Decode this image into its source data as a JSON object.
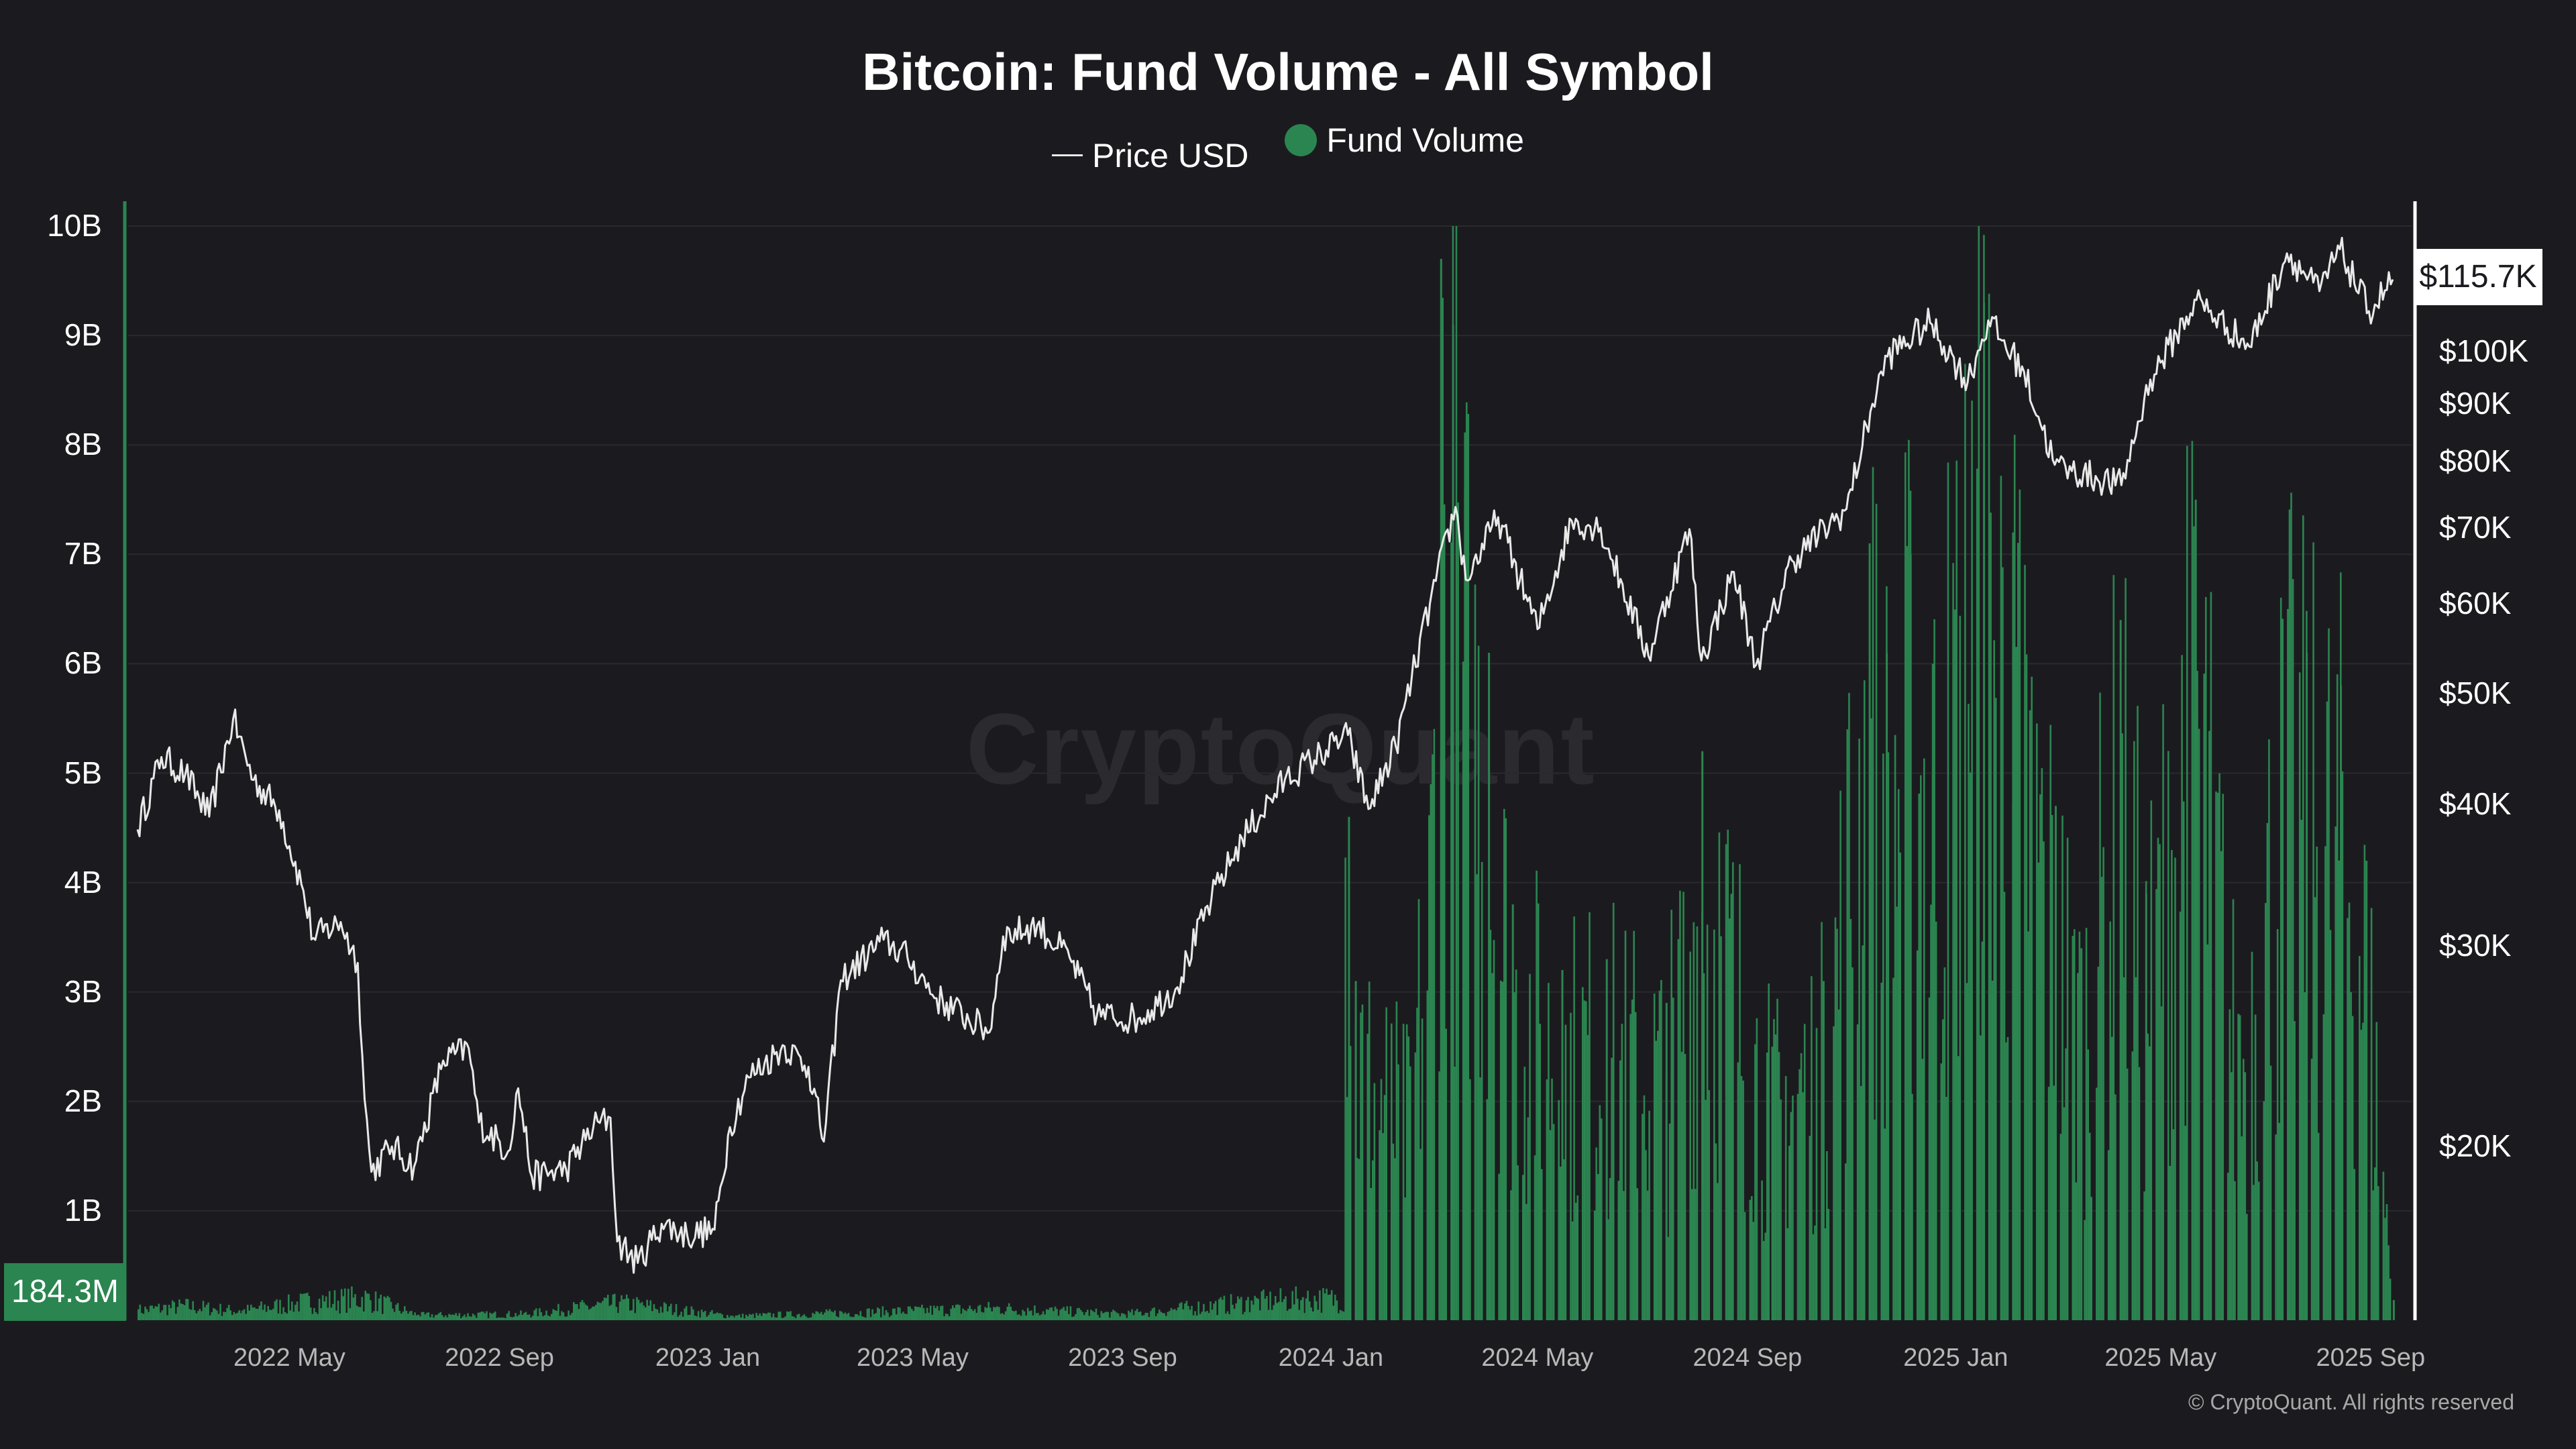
{
  "chart_data": {
    "type": "bar+line",
    "title": "Bitcoin: Fund Volume - All Symbol",
    "legend_position": "top-center",
    "grid": true,
    "series": [
      {
        "name": "Price USD",
        "type": "line",
        "axis": "right",
        "scale": "log",
        "color": "#e9e9e9",
        "points": [
          [
            "2022-02-01",
            38000
          ],
          [
            "2022-02-15",
            44000
          ],
          [
            "2022-03-01",
            42500
          ],
          [
            "2022-03-15",
            39000
          ],
          [
            "2022-03-29",
            47500
          ],
          [
            "2022-04-10",
            42000
          ],
          [
            "2022-04-25",
            39500
          ],
          [
            "2022-05-08",
            34000
          ],
          [
            "2022-05-15",
            30500
          ],
          [
            "2022-05-31",
            31500
          ],
          [
            "2022-06-10",
            29000
          ],
          [
            "2022-06-14",
            22000
          ],
          [
            "2022-06-18",
            19000
          ],
          [
            "2022-06-30",
            20000
          ],
          [
            "2022-07-13",
            19200
          ],
          [
            "2022-07-30",
            23800
          ],
          [
            "2022-08-14",
            24400
          ],
          [
            "2022-08-20",
            21000
          ],
          [
            "2022-09-06",
            19800
          ],
          [
            "2022-09-12",
            22500
          ],
          [
            "2022-09-20",
            18800
          ],
          [
            "2022-10-10",
            19100
          ],
          [
            "2022-10-26",
            20800
          ],
          [
            "2022-11-05",
            21200
          ],
          [
            "2022-11-09",
            16500
          ],
          [
            "2022-11-21",
            15800
          ],
          [
            "2022-12-05",
            17100
          ],
          [
            "2022-12-20",
            16700
          ],
          [
            "2023-01-05",
            16900
          ],
          [
            "2023-01-14",
            20800
          ],
          [
            "2023-01-25",
            23000
          ],
          [
            "2023-02-15",
            24500
          ],
          [
            "2023-03-01",
            23500
          ],
          [
            "2023-03-10",
            20200
          ],
          [
            "2023-03-20",
            28000
          ],
          [
            "2023-04-14",
            30400
          ],
          [
            "2023-04-28",
            29300
          ],
          [
            "2023-05-15",
            27000
          ],
          [
            "2023-06-15",
            25200
          ],
          [
            "2023-06-23",
            30600
          ],
          [
            "2023-07-13",
            31300
          ],
          [
            "2023-08-01",
            29300
          ],
          [
            "2023-08-17",
            26100
          ],
          [
            "2023-09-10",
            25900
          ],
          [
            "2023-10-02",
            27500
          ],
          [
            "2023-10-23",
            33000
          ],
          [
            "2023-11-10",
            37300
          ],
          [
            "2023-12-05",
            42000
          ],
          [
            "2023-12-20",
            43600
          ],
          [
            "2024-01-11",
            46000
          ],
          [
            "2024-01-23",
            39600
          ],
          [
            "2024-02-08",
            45000
          ],
          [
            "2024-02-28",
            60000
          ],
          [
            "2024-03-14",
            73000
          ],
          [
            "2024-03-20",
            63000
          ],
          [
            "2024-04-08",
            71500
          ],
          [
            "2024-05-01",
            57000
          ],
          [
            "2024-05-21",
            71000
          ],
          [
            "2024-06-07",
            70000
          ],
          [
            "2024-07-05",
            54000
          ],
          [
            "2024-07-29",
            69800
          ],
          [
            "2024-08-05",
            53500
          ],
          [
            "2024-08-24",
            64000
          ],
          [
            "2024-09-06",
            53000
          ],
          [
            "2024-09-27",
            65500
          ],
          [
            "2024-10-29",
            72700
          ],
          [
            "2024-11-12",
            88500
          ],
          [
            "2024-11-22",
            99000
          ],
          [
            "2024-12-17",
            106000
          ],
          [
            "2025-01-08",
            94000
          ],
          [
            "2025-01-20",
            106500
          ],
          [
            "2025-02-10",
            96000
          ],
          [
            "2025-02-28",
            79500
          ],
          [
            "2025-03-10",
            78500
          ],
          [
            "2025-04-08",
            76300
          ],
          [
            "2025-04-25",
            94500
          ],
          [
            "2025-05-22",
            111000
          ],
          [
            "2025-06-22",
            101000
          ],
          [
            "2025-07-14",
            122000
          ],
          [
            "2025-08-02",
            113000
          ],
          [
            "2025-08-14",
            123000
          ],
          [
            "2025-08-31",
            108500
          ],
          [
            "2025-09-14",
            115700
          ]
        ]
      },
      {
        "name": "Fund Volume",
        "type": "bar",
        "axis": "left",
        "color": "#2b8550",
        "weekly_sample": [
          [
            "2022-02-01",
            0.1
          ],
          [
            "2022-03-01",
            0.14
          ],
          [
            "2022-04-01",
            0.09
          ],
          [
            "2022-05-10",
            0.18
          ],
          [
            "2022-06-14",
            0.22
          ],
          [
            "2022-07-15",
            0.05
          ],
          [
            "2022-09-15",
            0.06
          ],
          [
            "2022-11-10",
            0.17
          ],
          [
            "2023-01-15",
            0.04
          ],
          [
            "2023-03-15",
            0.07
          ],
          [
            "2023-06-20",
            0.12
          ],
          [
            "2023-09-01",
            0.06
          ],
          [
            "2023-11-15",
            0.18
          ],
          [
            "2023-12-15",
            0.21
          ],
          [
            "2024-01-11",
            4.6
          ],
          [
            "2024-01-15",
            3.1
          ],
          [
            "2024-02-15",
            2.3
          ],
          [
            "2024-02-28",
            4.9
          ],
          [
            "2024-03-05",
            9.7
          ],
          [
            "2024-03-12",
            9.1
          ],
          [
            "2024-03-19",
            7.6
          ],
          [
            "2024-04-02",
            6.1
          ],
          [
            "2024-04-16",
            3.8
          ],
          [
            "2024-05-15",
            3.2
          ],
          [
            "2024-06-10",
            3.3
          ],
          [
            "2024-07-15",
            2.9
          ],
          [
            "2024-08-05",
            5.2
          ],
          [
            "2024-09-15",
            2.5
          ],
          [
            "2024-10-15",
            3.1
          ],
          [
            "2024-11-11",
            7.1
          ],
          [
            "2024-11-21",
            6.1
          ],
          [
            "2024-12-05",
            7.0
          ],
          [
            "2024-12-18",
            6.0
          ],
          [
            "2025-01-17",
            9.3
          ],
          [
            "2025-02-03",
            7.2
          ],
          [
            "2025-02-28",
            4.7
          ],
          [
            "2025-03-15",
            3.4
          ],
          [
            "2025-04-07",
            6.4
          ],
          [
            "2025-04-22",
            3.9
          ],
          [
            "2025-05-21",
            7.5
          ],
          [
            "2025-06-15",
            2.8
          ],
          [
            "2025-07-14",
            6.5
          ],
          [
            "2025-07-25",
            6.1
          ],
          [
            "2025-08-14",
            5.8
          ],
          [
            "2025-08-29",
            4.2
          ],
          [
            "2025-09-14",
            0.184
          ]
        ]
      }
    ],
    "y_left": {
      "min": 0,
      "max": 10,
      "unit": "B",
      "ticks": [
        {
          "value": 10,
          "label": "10B"
        },
        {
          "value": 9,
          "label": "9B"
        },
        {
          "value": 8,
          "label": "8B"
        },
        {
          "value": 7,
          "label": "7B"
        },
        {
          "value": 6,
          "label": "6B"
        },
        {
          "value": 5,
          "label": "5B"
        },
        {
          "value": 4,
          "label": "4B"
        },
        {
          "value": 3,
          "label": "3B"
        },
        {
          "value": 2,
          "label": "2B"
        },
        {
          "value": 1,
          "label": "1B"
        }
      ]
    },
    "y_right": {
      "scale": "log",
      "ticks": [
        {
          "value": 100000,
          "label": "$100K"
        },
        {
          "value": 90000,
          "label": "$90K"
        },
        {
          "value": 80000,
          "label": "$80K"
        },
        {
          "value": 70000,
          "label": "$70K"
        },
        {
          "value": 60000,
          "label": "$60K"
        },
        {
          "value": 50000,
          "label": "$50K"
        },
        {
          "value": 40000,
          "label": "$40K"
        },
        {
          "value": 30000,
          "label": "$30K"
        },
        {
          "value": 20000,
          "label": "$20K"
        }
      ]
    },
    "x_ticks": [
      {
        "date": "2022-05-01",
        "label": "2022 May"
      },
      {
        "date": "2022-09-01",
        "label": "2022 Sep"
      },
      {
        "date": "2023-01-01",
        "label": "2023 Jan"
      },
      {
        "date": "2023-05-01",
        "label": "2023 May"
      },
      {
        "date": "2023-09-01",
        "label": "2023 Sep"
      },
      {
        "date": "2024-01-01",
        "label": "2024 Jan"
      },
      {
        "date": "2024-05-01",
        "label": "2024 May"
      },
      {
        "date": "2024-09-01",
        "label": "2024 Sep"
      },
      {
        "date": "2025-01-01",
        "label": "2025 Jan"
      },
      {
        "date": "2025-05-01",
        "label": "2025 May"
      },
      {
        "date": "2025-09-01",
        "label": "2025 Sep"
      }
    ],
    "current_values": {
      "fund_volume": "184.3M",
      "price": "$115.7K"
    }
  },
  "legend": {
    "price_label": "Price USD",
    "volume_label": "Fund Volume"
  },
  "watermark": "CryptoQuant",
  "footer": "© CryptoQuant. All rights reserved",
  "colors": {
    "background": "#1b1b1f",
    "volume": "#2b8550",
    "price": "#e9e9e9",
    "grid": "#2a2a2e"
  }
}
